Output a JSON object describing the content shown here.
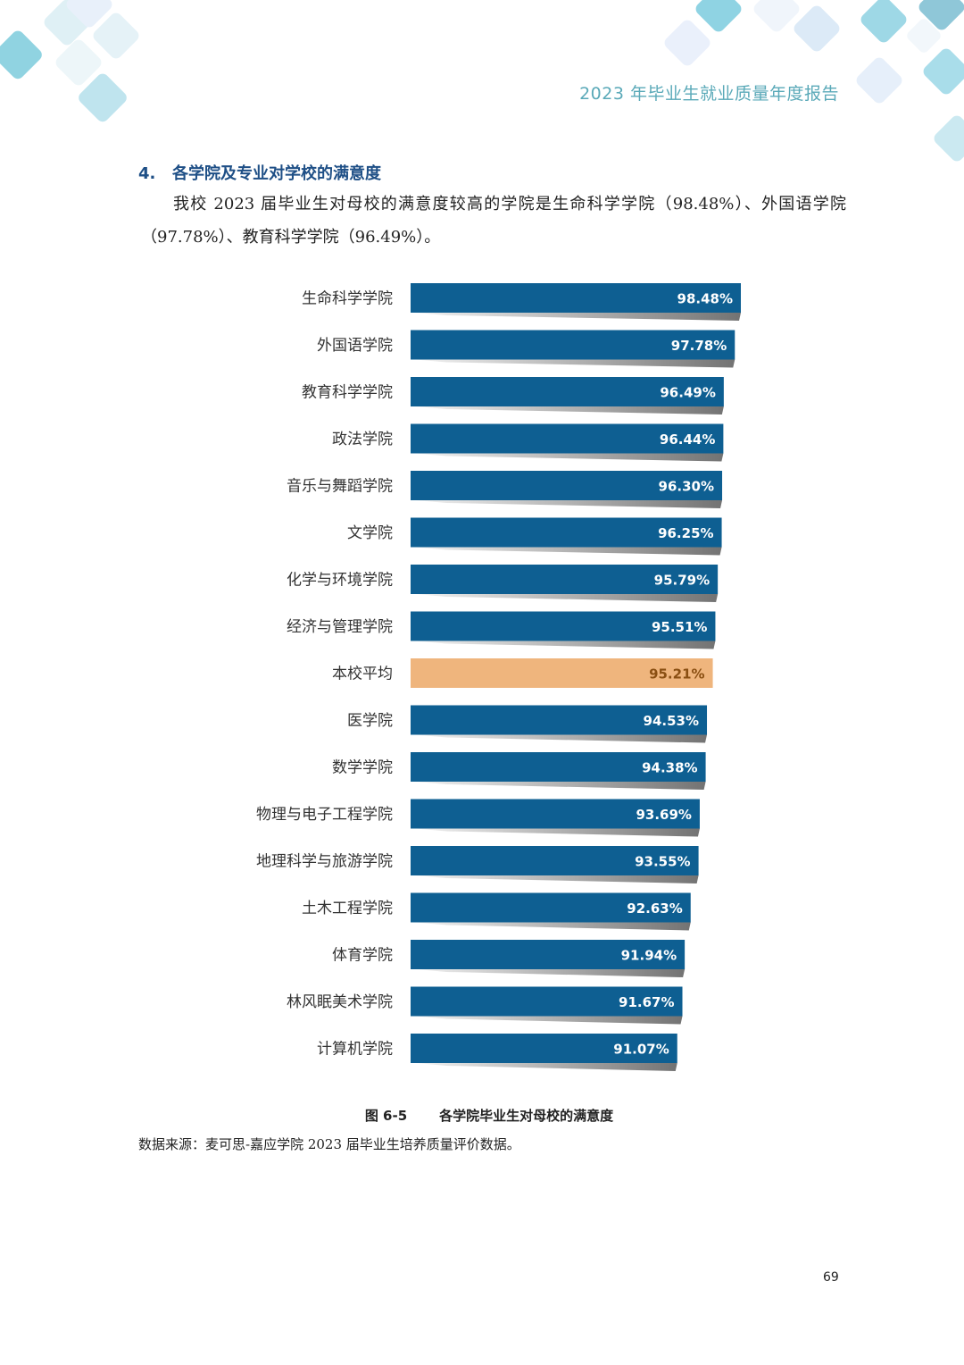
{
  "header": {
    "title": "2023 年毕业生就业质量年度报告"
  },
  "section": {
    "number": "4.",
    "heading": "各学院及专业对学校的满意度",
    "intro": "我校 2023 届毕业生对母校的满意度较高的学院是生命科学学院（98.48%）、外国语学院（97.78%）、教育科学学院（96.49%）。"
  },
  "figure": {
    "number": "图 6-5",
    "title": "各学院毕业生对母校的满意度",
    "source": "数据来源：麦可思-嘉应学院 2023 届毕业生培养质量评价数据。"
  },
  "chart_data": {
    "type": "bar",
    "orientation": "horizontal",
    "title": "",
    "xlabel": "",
    "ylabel": "",
    "unit": "%",
    "colors": {
      "default": "#0e5f92",
      "highlight": "#efb57d",
      "value_text": "#ffffff",
      "highlight_text": "#8a4f12"
    },
    "categories": [
      "生命科学学院",
      "外国语学院",
      "教育科学学院",
      "政法学院",
      "音乐与舞蹈学院",
      "文学院",
      "化学与环境学院",
      "经济与管理学院",
      "本校平均",
      "医学院",
      "数学学院",
      "物理与电子工程学院",
      "地理科学与旅游学院",
      "土木工程学院",
      "体育学院",
      "林风眠美术学院",
      "计算机学院"
    ],
    "values": [
      98.48,
      97.78,
      96.49,
      96.44,
      96.3,
      96.25,
      95.79,
      95.51,
      95.21,
      94.53,
      94.38,
      93.69,
      93.55,
      92.63,
      91.94,
      91.67,
      91.07
    ],
    "value_labels": [
      "98.48%",
      "97.78%",
      "96.49%",
      "96.44%",
      "96.30%",
      "96.25%",
      "95.79%",
      "95.51%",
      "95.21%",
      "94.53%",
      "94.38%",
      "93.69%",
      "93.55%",
      "92.63%",
      "91.94%",
      "91.67%",
      "91.07%"
    ],
    "highlight_category": "本校平均",
    "grid": false,
    "legend": "none"
  },
  "page": {
    "number": "69"
  }
}
